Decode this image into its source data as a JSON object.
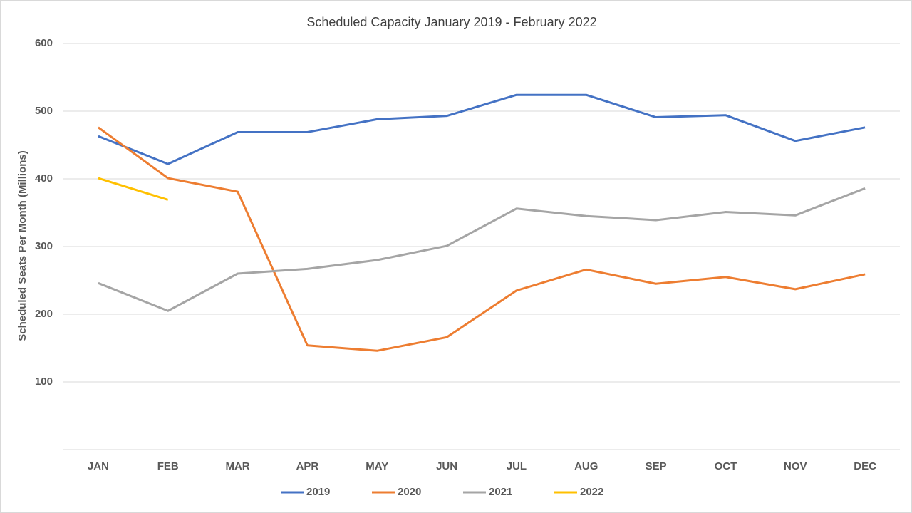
{
  "chart_data": {
    "type": "line",
    "title": "Scheduled Capacity January 2019   - February 2022",
    "y_label": "Scheduled Seats Per Month (Millions)",
    "categories": [
      "JAN",
      "FEB",
      "MAR",
      "APR",
      "MAY",
      "JUN",
      "JUL",
      "AUG",
      "SEP",
      "OCT",
      "NOV",
      "DEC"
    ],
    "series": [
      {
        "name": "2019",
        "color": "#4472c4",
        "values": [
          463,
          422,
          469,
          469,
          488,
          493,
          524,
          524,
          491,
          494,
          456,
          476
        ]
      },
      {
        "name": "2020",
        "color": "#ed7d31",
        "values": [
          476,
          401,
          381,
          154,
          146,
          166,
          235,
          266,
          245,
          255,
          237,
          259
        ]
      },
      {
        "name": "2021",
        "color": "#a5a5a5",
        "values": [
          246,
          205,
          260,
          267,
          280,
          301,
          356,
          345,
          339,
          351,
          346,
          386
        ]
      },
      {
        "name": "2022",
        "color": "#ffc000",
        "values": [
          401,
          369,
          null,
          null,
          null,
          null,
          null,
          null,
          null,
          null,
          null,
          null
        ]
      }
    ],
    "ylim": [
      0,
      600
    ],
    "yticks": [
      100,
      200,
      300,
      400,
      500,
      600
    ],
    "grid": true,
    "legend": "bottom"
  }
}
